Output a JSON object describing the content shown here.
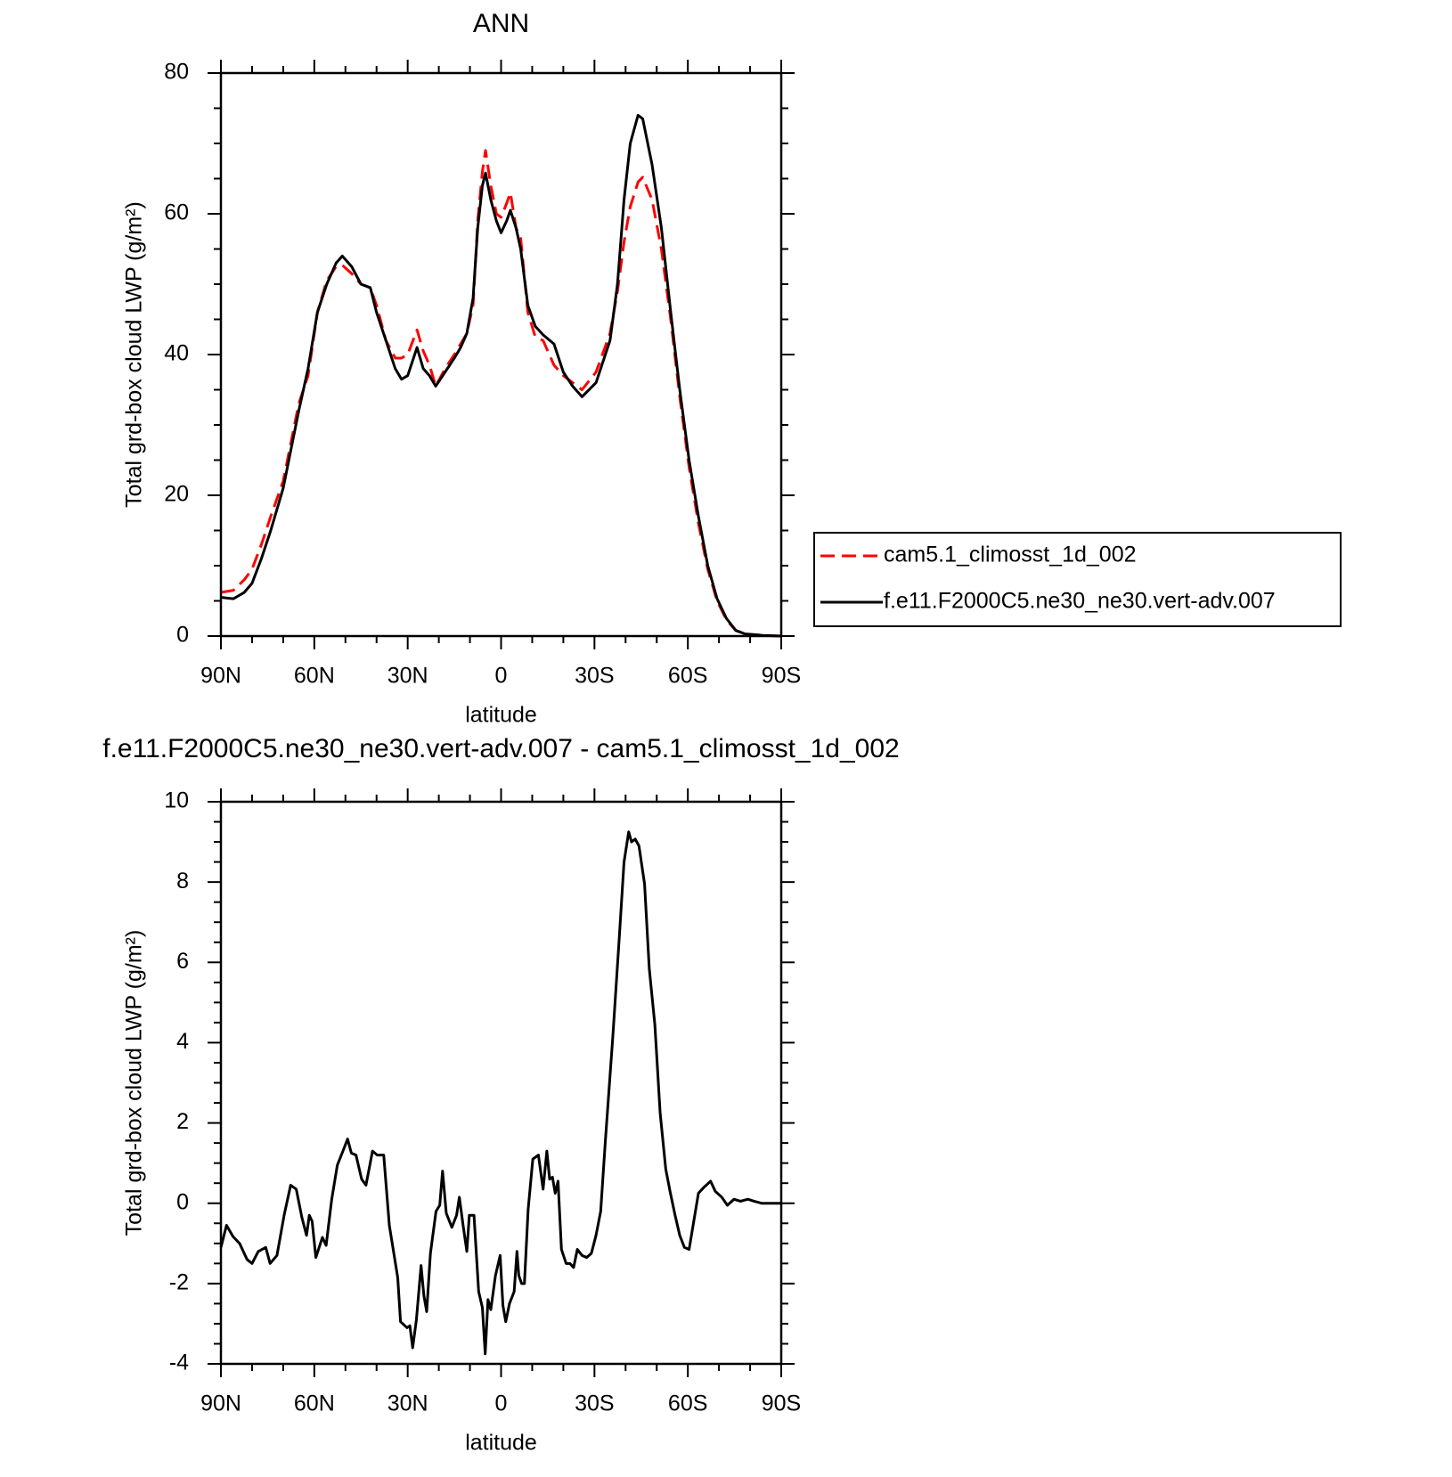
{
  "chart_data": [
    {
      "type": "line",
      "title": "ANN",
      "xlabel": "latitude",
      "ylabel": "Total grd-box cloud LWP (g/m²)",
      "x": [
        90,
        86,
        82.5,
        80,
        77,
        74,
        70,
        65,
        62,
        59,
        56,
        53,
        51,
        48,
        45,
        42,
        40,
        37,
        34,
        32,
        30,
        27,
        25,
        23,
        21,
        18,
        15,
        13,
        11,
        9,
        7.5,
        6,
        5,
        3.3,
        1.5,
        0,
        -1.8,
        -3,
        -4.8,
        -6.3,
        -8.6,
        -11,
        -13.5,
        -17,
        -20,
        -23,
        -26,
        -30.5,
        -35,
        -37.4,
        -39.5,
        -41.5,
        -44,
        -45.5,
        -48.5,
        -51.5,
        -54.5,
        -57.4,
        -60.4,
        -63.4,
        -66.4,
        -69.4,
        -72.4,
        -75.4,
        -78.4,
        -84,
        -90
      ],
      "series": [
        {
          "name": "cam5.1_climosst_1d_002",
          "color": "#ff0000",
          "line_style": "dashed",
          "values": [
            6.2,
            6.5,
            8,
            9.5,
            13,
            17,
            22,
            33,
            37,
            46,
            50.5,
            52.5,
            52.7,
            51.5,
            50,
            49.5,
            47,
            42,
            39.5,
            39.5,
            40,
            43.5,
            40.5,
            38.5,
            35.5,
            38,
            40,
            41.5,
            43,
            47,
            59,
            66,
            69,
            64,
            60,
            59.5,
            61.5,
            63,
            58,
            56.5,
            46,
            42.5,
            42,
            38.5,
            37,
            36,
            35,
            37.5,
            43,
            49,
            56,
            61,
            64.5,
            65.2,
            62,
            55,
            45,
            34,
            24,
            16,
            9.5,
            5,
            2.3,
            0.8,
            0.3,
            0.1,
            0
          ]
        },
        {
          "name": "f.e11.F2000C5.ne30_ne30.vert-adv.007",
          "color": "#000000",
          "line_style": "solid",
          "values": [
            5.5,
            5.3,
            6.2,
            7.5,
            11,
            15,
            21,
            32,
            38,
            46,
            50,
            53,
            54,
            52.5,
            50,
            49.5,
            46,
            42,
            38,
            36.5,
            37,
            41,
            38,
            37,
            35.5,
            37.5,
            39.5,
            41,
            43,
            48,
            58,
            64,
            65.8,
            62,
            59,
            57.3,
            59,
            60.5,
            58,
            55,
            47,
            44,
            42.8,
            41.5,
            37.5,
            35.5,
            34,
            36,
            42,
            50,
            62,
            70,
            74,
            73.5,
            67,
            58,
            46,
            35,
            25,
            17,
            10,
            5.3,
            2.5,
            0.8,
            0.3,
            0.1,
            0
          ]
        }
      ],
      "xlim": [
        90,
        -90
      ],
      "xticks": [
        {
          "value": 90,
          "label": "90N"
        },
        {
          "value": 60,
          "label": "60N"
        },
        {
          "value": 30,
          "label": "30N"
        },
        0,
        {
          "value": -30,
          "label": "30S"
        },
        {
          "value": -60,
          "label": "60S"
        },
        {
          "value": -90,
          "label": "90S"
        }
      ],
      "xminorticks": [
        80,
        70,
        50,
        40,
        20,
        10,
        -10,
        -20,
        -40,
        -50,
        -70,
        -80
      ],
      "ylim": [
        0,
        80
      ],
      "yticks": [
        0,
        20,
        40,
        60,
        80
      ],
      "yminorticks": [
        5,
        10,
        15,
        25,
        30,
        35,
        45,
        50,
        55,
        65,
        70,
        75
      ],
      "legend": "right"
    },
    {
      "type": "line",
      "title": "f.e11.F2000C5.ne30_ne30.vert-adv.007 - cam5.1_climosst_1d_002",
      "xlabel": "latitude",
      "ylabel": "Total grd-box cloud LWP (g/m²)",
      "x": [
        90,
        88.2,
        86.1,
        84,
        81.6,
        80,
        78,
        75.6,
        74.2,
        72,
        69.7,
        67.6,
        65.8,
        64,
        62.5,
        61.6,
        60.7,
        59.5,
        57.4,
        56.2,
        54.4,
        52.6,
        50.8,
        49.3,
        48.1,
        46.6,
        44.8,
        43.4,
        41.3,
        39.8,
        37.7,
        35.9,
        33.2,
        32.3,
        30.2,
        29.3,
        28.4,
        27.2,
        25.7,
        24.8,
        23.9,
        22.7,
        20.9,
        19.7,
        18.8,
        17.6,
        15.8,
        14.3,
        13.4,
        12.2,
        11,
        10.2,
        8.7,
        7.2,
        6,
        5.1,
        4.2,
        3.3,
        1.8,
        0.3,
        -0.6,
        -1.5,
        -2.7,
        -4.2,
        -5.1,
        -5.7,
        -6.6,
        -7.5,
        -8.7,
        -10.2,
        -12,
        -13.5,
        -14.7,
        -15.6,
        -16.5,
        -17.4,
        -18.3,
        -19.4,
        -20.9,
        -22.1,
        -23.3,
        -24.5,
        -26,
        -27.5,
        -29,
        -30.5,
        -32,
        -33.5,
        -35.9,
        -38,
        -39.5,
        -41,
        -41.9,
        -43.1,
        -44.3,
        -46.1,
        -47.6,
        -49.4,
        -51.1,
        -52.9,
        -54.4,
        -55.9,
        -57.4,
        -58.9,
        -60.4,
        -61.9,
        -63.4,
        -65.2,
        -67.3,
        -68.8,
        -70.9,
        -72.7,
        -74.8,
        -76.9,
        -79.3,
        -81.3,
        -83.7,
        -90
      ],
      "color": "#000000",
      "values": [
        -1.1,
        -0.55,
        -0.83,
        -1.0,
        -1.4,
        -1.5,
        -1.2,
        -1.1,
        -1.5,
        -1.3,
        -0.3,
        0.45,
        0.35,
        -0.35,
        -0.8,
        -0.3,
        -0.45,
        -1.35,
        -0.85,
        -1.05,
        0.1,
        0.95,
        1.3,
        1.6,
        1.25,
        1.2,
        0.6,
        0.45,
        1.3,
        1.2,
        1.2,
        -0.55,
        -1.85,
        -2.95,
        -3.1,
        -3.05,
        -3.6,
        -2.9,
        -1.55,
        -2.3,
        -2.7,
        -1.25,
        -0.2,
        -0.05,
        0.8,
        -0.25,
        -0.6,
        -0.3,
        0.15,
        -0.55,
        -1.2,
        -0.3,
        -0.3,
        -2.2,
        -2.6,
        -3.75,
        -2.4,
        -2.65,
        -1.8,
        -1.3,
        -2.55,
        -2.95,
        -2.5,
        -2.2,
        -1.2,
        -1.8,
        -2.0,
        -2.0,
        -0.15,
        1.1,
        1.2,
        0.35,
        1.3,
        0.6,
        0.65,
        0.25,
        0.55,
        -1.15,
        -1.5,
        -1.5,
        -1.6,
        -1.15,
        -1.3,
        -1.35,
        -1.25,
        -0.8,
        -0.2,
        1.55,
        4.15,
        6.65,
        8.5,
        9.25,
        9.0,
        9.07,
        8.9,
        7.95,
        5.85,
        4.45,
        2.25,
        0.85,
        0.25,
        -0.3,
        -0.8,
        -1.1,
        -1.15,
        -0.45,
        0.25,
        0.4,
        0.55,
        0.3,
        0.15,
        -0.05,
        0.1,
        0.05,
        0.1,
        0.05,
        0,
        0
      ],
      "xlim": [
        90,
        -90
      ],
      "xticks": [
        {
          "value": 90,
          "label": "90N"
        },
        {
          "value": 60,
          "label": "60N"
        },
        {
          "value": 30,
          "label": "30N"
        },
        0,
        {
          "value": -30,
          "label": "30S"
        },
        {
          "value": -60,
          "label": "60S"
        },
        {
          "value": -90,
          "label": "90S"
        }
      ],
      "xminorticks": [
        80,
        70,
        50,
        40,
        20,
        10,
        -10,
        -20,
        -40,
        -50,
        -70,
        -80
      ],
      "ylim": [
        -4,
        10
      ],
      "yticks": [
        -4,
        -2,
        0,
        2,
        4,
        6,
        8,
        10
      ],
      "yminorticks": [
        -3.5,
        -3,
        -2.5,
        -1.5,
        -1,
        -0.5,
        0.5,
        1,
        1.5,
        2.5,
        3,
        3.5,
        4.5,
        5,
        5.5,
        6.5,
        7,
        7.5,
        8.5,
        9,
        9.5
      ]
    }
  ]
}
